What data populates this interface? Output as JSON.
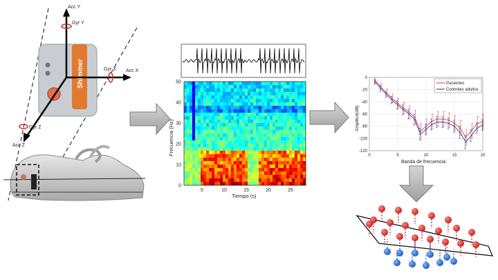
{
  "sensor": {
    "axis_labels": {
      "acc_y": "Acc Y",
      "gyr_y": "Gyr Y",
      "gyr_x": "Gyr X",
      "acc_x": "Acc X",
      "gyr_z": "Gyr Z",
      "acc_z": "Acc Z"
    },
    "brand_text": "Shimmer"
  },
  "spectrogram": {
    "ylabel": "Frecuencia (Hz)",
    "xlabel": "Tiempo (s)",
    "y_ticks": [
      "50",
      "40",
      "30",
      "20",
      "10",
      "0"
    ],
    "x_ticks": [
      "5",
      "10",
      "15",
      "20",
      "25"
    ]
  },
  "chart_data": {
    "type": "line",
    "xlabel": "Banda de frecuencia",
    "ylabel": "Amplitud(dB)",
    "xlim": [
      0,
      20
    ],
    "ylim": [
      -120,
      0
    ],
    "x_ticks": [
      "0",
      "5",
      "10",
      "15",
      "20"
    ],
    "y_ticks": [
      "0",
      "-20",
      "-40",
      "-60",
      "-80",
      "-100",
      "-120"
    ],
    "legend_position": "top-right",
    "grid": true,
    "x": [
      1,
      2,
      3,
      4,
      5,
      6,
      7,
      8,
      9,
      10,
      11,
      12,
      13,
      14,
      15,
      16,
      17,
      18,
      19,
      20
    ],
    "series": [
      {
        "name": "Pacientes",
        "color": "#d9534f",
        "values": [
          -5,
          -15,
          -25,
          -34,
          -42,
          -50,
          -57,
          -65,
          -88,
          -80,
          -72,
          -68,
          -68,
          -70,
          -75,
          -83,
          -98,
          -87,
          -76,
          -72
        ],
        "error": [
          5,
          5,
          6,
          7,
          8,
          9,
          10,
          11,
          13,
          12,
          12,
          12,
          12,
          12,
          12,
          12,
          13,
          12,
          12,
          12
        ]
      },
      {
        "name": "Controles adultos",
        "color": "#4c4ca6",
        "values": [
          -7,
          -18,
          -28,
          -37,
          -45,
          -53,
          -60,
          -69,
          -93,
          -85,
          -77,
          -73,
          -73,
          -75,
          -80,
          -90,
          -106,
          -95,
          -83,
          -78
        ],
        "error": [
          4,
          5,
          5,
          6,
          7,
          8,
          8,
          9,
          10,
          9,
          9,
          9,
          9,
          9,
          10,
          10,
          11,
          10,
          9,
          9
        ]
      }
    ]
  }
}
